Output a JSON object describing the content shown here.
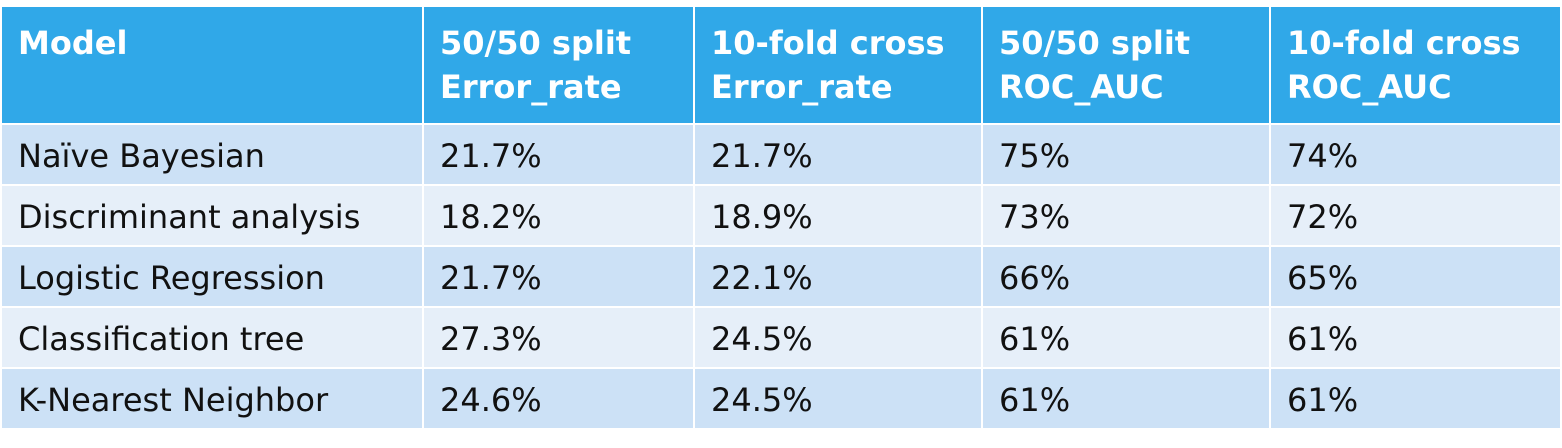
{
  "table": {
    "headers": [
      {
        "line1": "Model",
        "line2": ""
      },
      {
        "line1": "50/50 split",
        "line2": "Error_rate"
      },
      {
        "line1": "10-fold cross",
        "line2": "Error_rate"
      },
      {
        "line1": "50/50 split",
        "line2": "ROC_AUC"
      },
      {
        "line1": "10-fold cross",
        "line2": "ROC_AUC"
      }
    ],
    "rows": [
      [
        "Naïve Bayesian",
        "21.7%",
        "21.7%",
        "75%",
        "74%"
      ],
      [
        "Discriminant analysis",
        "18.2%",
        "18.9%",
        "73%",
        "72%"
      ],
      [
        "Logistic Regression",
        "21.7%",
        "22.1%",
        "66%",
        "65%"
      ],
      [
        "Classification tree",
        "27.3%",
        "24.5%",
        "61%",
        "61%"
      ],
      [
        "K-Nearest Neighbor",
        "24.6%",
        "24.5%",
        "61%",
        "61%"
      ]
    ]
  },
  "colors": {
    "header_bg": "#30a8e8",
    "row_odd_bg": "#cce1f6",
    "row_even_bg": "#e6eff9"
  }
}
